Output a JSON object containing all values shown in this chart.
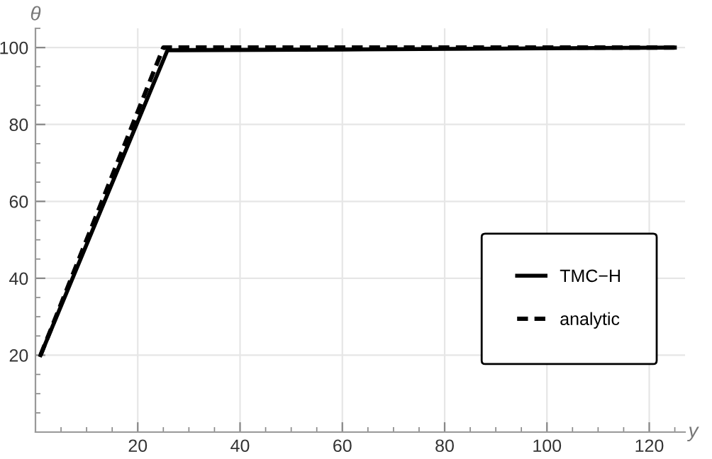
{
  "chart_data": {
    "type": "line",
    "xlabel": "y",
    "ylabel": "θ",
    "xlim": [
      0,
      127
    ],
    "ylim": [
      0,
      105
    ],
    "xticks": [
      20,
      40,
      60,
      80,
      100,
      120
    ],
    "yticks": [
      20,
      40,
      60,
      80,
      100
    ],
    "grid": true,
    "legend": "right",
    "series": [
      {
        "name": "TMC−H",
        "color": "#000000",
        "line_style": "solid",
        "x": [
          1,
          25.8,
          60,
          125
        ],
        "values": [
          20,
          99.3,
          99.5,
          100
        ]
      },
      {
        "name": "analytic",
        "color": "#000000",
        "line_style": "dashed",
        "x": [
          1,
          25,
          125
        ],
        "values": [
          20,
          100,
          100
        ]
      }
    ]
  }
}
